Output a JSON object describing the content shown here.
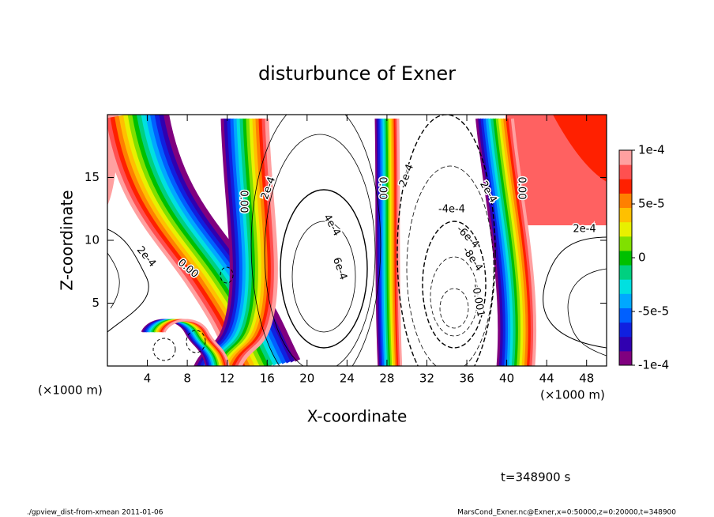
{
  "chart_data": {
    "type": "contour",
    "title": "disturbunce of Exner",
    "x_label": "X-coordinate",
    "y_label": "Z-coordinate",
    "x_unit": "(×1000 m)",
    "xlim": [
      0,
      50
    ],
    "xticks": [
      4,
      8,
      12,
      16,
      20,
      24,
      28,
      32,
      36,
      40,
      44,
      48
    ],
    "ylim": [
      0,
      20
    ],
    "yticks": [
      5,
      10,
      15
    ],
    "colorbar": {
      "clim": [
        -0.0001,
        0.0001
      ],
      "ticks": [
        {
          "value": 0.0001,
          "label": "1e-4"
        },
        {
          "value": 5e-05,
          "label": "5e-5"
        },
        0,
        {
          "value": -5e-05,
          "label": "-5e-5"
        },
        {
          "value": -0.0001,
          "label": "-1e-4"
        }
      ],
      "colors": [
        "#80007f",
        "#3000b0",
        "#1020e0",
        "#0060ff",
        "#00a8ff",
        "#00e0e0",
        "#00d080",
        "#00c000",
        "#80e000",
        "#e8f000",
        "#ffc000",
        "#ff8000",
        "#ff2000",
        "#ff5050",
        "#ffa0a0"
      ]
    },
    "contour_labels": [
      "0.00",
      "0.00",
      "2e-4",
      "2e-4",
      "4e-4",
      "6e-4",
      "0.00",
      "2e-4",
      "-4e-4",
      "-6e-4",
      "-8e-4",
      "-0.001",
      "2e-4",
      "0.00",
      "2e-4"
    ],
    "time_label": "t=348900 s"
  },
  "footer": {
    "left": "./gpview_dist-from-xmean  2011-01-06",
    "right": "MarsCond_Exner.nc@Exner,x=0:50000,z=0:20000,t=348900"
  }
}
